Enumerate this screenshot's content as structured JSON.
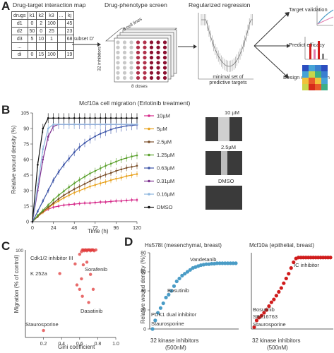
{
  "panels": {
    "A": "A",
    "B": "B",
    "C": "C",
    "D": "D"
  },
  "panelA": {
    "title_map": "Drug-target interaction map",
    "title_screen": "Drug-phenotype screen",
    "title_regression": "Regularized regression",
    "table_header": [
      "drugs",
      "k1",
      "k2",
      "k3",
      "...",
      "kj"
    ],
    "table_rows": [
      [
        "d1",
        "0",
        "2",
        "100",
        "",
        "45"
      ],
      [
        "d2",
        "50",
        "0",
        "25",
        "",
        "23"
      ],
      [
        "d3",
        "5",
        "10",
        "1",
        "",
        "68"
      ],
      [
        "...",
        "",
        "",
        "",
        "",
        ""
      ],
      [
        "di",
        "0",
        "15",
        "100",
        "",
        "19"
      ]
    ],
    "subset_label": "subset D'",
    "cell_lines_label": "8 cell lines",
    "inhibitors_label": "32 inhibitors",
    "doses_label": "8 doses",
    "min_set_label": "minimal set of predictive targets",
    "outcomes": [
      "Target validation",
      "Predict efficacy",
      "Design combination"
    ]
  },
  "panelB": {
    "title": "Mcf10a cell migration (Erlotinib treatment)",
    "ylabel": "Relative wound density (%)",
    "xlabel": "Time (h)",
    "image_labels": [
      "10 µM",
      "2.5µM",
      "DMSO"
    ]
  },
  "panelC": {
    "xlabel": "Gini coefficient",
    "ylabel": "Migration (% of control)",
    "annotations": [
      "Cdk1/2 inhibitor III",
      "K 252a",
      "Sorafenib",
      "Dasatinib",
      "Staurosporine"
    ]
  },
  "panelD": {
    "ylabel": "Relative wound density (%)",
    "left_title": "Hs578t (mesenchymal, breast)",
    "right_title": "Mcf10a (epithelial, breast)",
    "left_annotations": [
      "Vandetanib",
      "Bosutinib",
      "PDK1 dual inhibitor",
      "Staurosporine"
    ],
    "right_annotations": [
      "IC inhibitor",
      "Bosutinib",
      "SB216763",
      "Staurosporine"
    ],
    "xlabel": "32 kinase inhibitors",
    "xlabel_sub": "(500nM)"
  },
  "chart_data": [
    {
      "type": "line",
      "title": "Mcf10a cell migration (Erlotinib treatment)",
      "xlabel": "Time (h)",
      "ylabel": "Relative wound density (%)",
      "xlim": [
        0,
        120
      ],
      "ylim": [
        0,
        105
      ],
      "x_ticks": [
        0,
        24,
        48,
        72,
        96,
        120
      ],
      "y_ticks": [
        0,
        15,
        30,
        45,
        60,
        75,
        90,
        105
      ],
      "legend_position": "right",
      "x": [
        0,
        6,
        12,
        18,
        24,
        30,
        36,
        42,
        48,
        54,
        60,
        66,
        72,
        78,
        84,
        90,
        96,
        102,
        108,
        114,
        120
      ],
      "series": [
        {
          "name": "10µM",
          "color": "#d62a8a",
          "values": [
            0,
            5,
            9,
            12,
            14,
            15,
            16,
            16.5,
            17,
            17.5,
            18,
            18,
            18.5,
            19,
            19,
            19.5,
            20,
            20,
            20.5,
            21,
            21
          ]
        },
        {
          "name": "5µM",
          "color": "#e8a21e",
          "values": [
            0,
            5,
            9,
            13,
            17,
            20,
            23,
            25.5,
            28,
            30,
            32,
            34,
            35.5,
            37,
            38.5,
            40,
            41.5,
            42.5,
            44,
            45,
            46
          ]
        },
        {
          "name": "2.5µM",
          "color": "#7a4e29",
          "values": [
            0,
            5,
            10,
            14,
            18,
            22,
            25.5,
            28.5,
            31.5,
            34,
            36.5,
            39,
            41.5,
            43.5,
            45.5,
            47,
            49,
            50.5,
            52,
            53,
            54
          ]
        },
        {
          "name": "1.25µM",
          "color": "#5aa02c",
          "values": [
            0,
            6,
            11,
            16,
            21,
            25.5,
            29.5,
            33.5,
            37,
            40.5,
            43.5,
            46.5,
            49,
            51.5,
            54,
            56,
            58,
            60,
            61.5,
            63,
            64
          ]
        },
        {
          "name": "0.63µM",
          "color": "#3d55a8",
          "values": [
            0,
            10,
            20,
            30,
            40,
            48,
            55,
            61,
            67,
            72,
            76,
            79.5,
            82.5,
            85,
            87,
            89,
            90.5,
            91.5,
            92.5,
            93,
            93.5
          ]
        },
        {
          "name": "0.31µM",
          "color": "#7b2d8e",
          "values": [
            0,
            30,
            60,
            82,
            92,
            94,
            94,
            94,
            94,
            94,
            94,
            94,
            94,
            94,
            94,
            94,
            94,
            94,
            94,
            94,
            94
          ]
        },
        {
          "name": "0.16µM",
          "color": "#8fb8df",
          "values": [
            0,
            35,
            70,
            90,
            94,
            94,
            94,
            94,
            94,
            94,
            94,
            94,
            94,
            94,
            94,
            94,
            94,
            94,
            94,
            94,
            94
          ]
        },
        {
          "name": "DMSO",
          "color": "#111111",
          "values": [
            0,
            55,
            90,
            100,
            100,
            100,
            100,
            100,
            100,
            100,
            100,
            100,
            100,
            100,
            100,
            100,
            100,
            100,
            100,
            100,
            100
          ]
        }
      ]
    },
    {
      "type": "scatter",
      "xlabel": "Gini coefficient",
      "ylabel": "Migration (% of control)",
      "xlim": [
        0,
        1.0
      ],
      "ylim": [
        0,
        100
      ],
      "x_ticks": [
        0.2,
        0.4,
        0.6,
        0.8,
        1.0
      ],
      "color": "#e03a3a",
      "points": [
        {
          "x": 0.2,
          "y": 8
        },
        {
          "x": 0.38,
          "y": 73
        },
        {
          "x": 0.55,
          "y": 84
        },
        {
          "x": 0.6,
          "y": 95
        },
        {
          "x": 0.62,
          "y": 98
        },
        {
          "x": 0.63,
          "y": 100
        },
        {
          "x": 0.64,
          "y": 100
        },
        {
          "x": 0.65,
          "y": 99
        },
        {
          "x": 0.66,
          "y": 100
        },
        {
          "x": 0.67,
          "y": 100
        },
        {
          "x": 0.68,
          "y": 99
        },
        {
          "x": 0.69,
          "y": 100
        },
        {
          "x": 0.7,
          "y": 100
        },
        {
          "x": 0.71,
          "y": 100
        },
        {
          "x": 0.72,
          "y": 99
        },
        {
          "x": 0.73,
          "y": 100
        },
        {
          "x": 0.74,
          "y": 100
        },
        {
          "x": 0.75,
          "y": 100
        },
        {
          "x": 0.76,
          "y": 99
        },
        {
          "x": 0.78,
          "y": 100
        },
        {
          "x": 0.64,
          "y": 83
        },
        {
          "x": 0.68,
          "y": 86
        },
        {
          "x": 0.62,
          "y": 67
        },
        {
          "x": 0.72,
          "y": 72
        },
        {
          "x": 0.57,
          "y": 60
        },
        {
          "x": 0.63,
          "y": 47
        },
        {
          "x": 0.7,
          "y": 40
        },
        {
          "x": 0.75,
          "y": 55
        },
        {
          "x": 0.6,
          "y": 55
        }
      ]
    },
    {
      "type": "scatter",
      "title": "Hs578t (mesenchymal, breast)",
      "xlabel": "32 kinase inhibitors (500nM)",
      "ylabel": "Relative wound density (%)",
      "ylim": [
        0,
        80
      ],
      "y_ticks": [
        0,
        20,
        40,
        60,
        80
      ],
      "color": "#4a9cc6",
      "values": [
        0,
        9,
        17,
        22,
        27,
        33,
        36,
        40,
        45,
        50,
        53,
        56,
        58,
        60,
        62,
        64,
        65,
        66,
        67,
        67.5,
        68,
        68,
        68.5,
        68.5,
        69,
        69,
        69,
        69,
        69,
        69,
        69,
        69
      ]
    },
    {
      "type": "scatter",
      "title": "Mcf10a (epithelial, breast)",
      "xlabel": "32 kinase inhibitors (500nM)",
      "ylim": [
        0,
        80
      ],
      "color": "#d01c1c",
      "values": [
        2,
        9,
        12,
        14,
        17,
        20,
        24,
        28,
        31,
        35,
        39,
        43,
        48,
        53,
        58,
        64,
        70,
        74,
        75,
        75,
        75,
        75,
        75,
        75,
        75,
        75,
        75,
        75,
        75,
        75,
        75,
        75
      ]
    }
  ]
}
